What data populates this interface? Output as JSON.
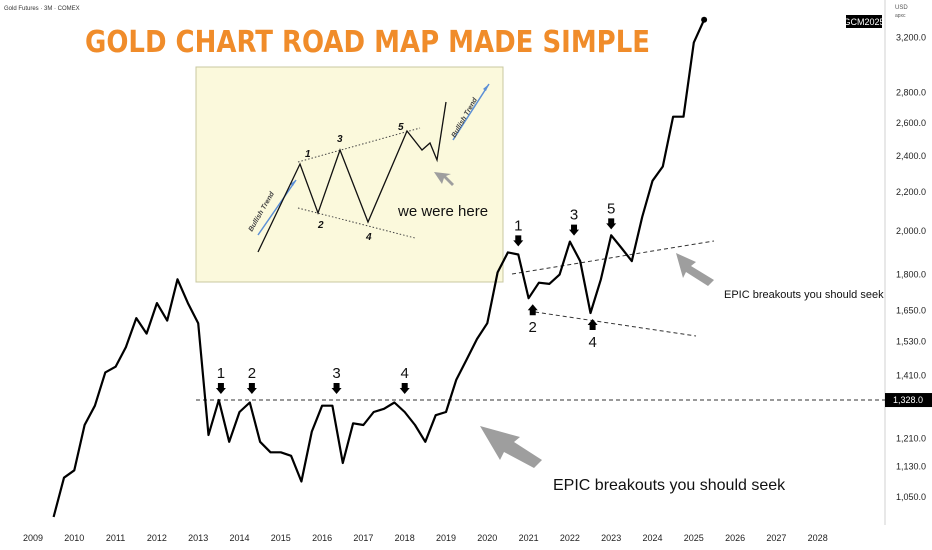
{
  "header": {
    "instrument": "Gold Futures · 3M · COMEX",
    "headline": "GOLD CHART ROAD MAP MADE SIMPLE",
    "ticker": "GCM2025",
    "currency": "USD",
    "scale_mode": "apxc"
  },
  "colors": {
    "headline": "#f08c2a",
    "line": "#000000",
    "inset_bg": "#fbf9dc",
    "inset_border": "#c8c8a0",
    "price_tag_bg": "#000000",
    "ticker_bg": "#000000",
    "arrow_fill": "#9e9e9e",
    "trend_arrow": "#5b8fd6"
  },
  "annotations": {
    "breakout_bottom": "EPIC breakouts you should seek",
    "breakout_top": "EPIC breakouts you should seek",
    "we_were_here": "we were here",
    "bullish_trend_left": "Bullish Trend",
    "bullish_trend_right": "Bullish Trend"
  },
  "chart_data": {
    "type": "line",
    "title": "GOLD CHART ROAD MAP MADE SIMPLE",
    "scale": "log",
    "ylim": [
      1000,
      3420
    ],
    "xlim": [
      2009.0,
      2028.7
    ],
    "x_ticks": [
      "2009",
      "2010",
      "2011",
      "2012",
      "2013",
      "2014",
      "2015",
      "2016",
      "2017",
      "2018",
      "2019",
      "2020",
      "2021",
      "2022",
      "2023",
      "2024",
      "2025",
      "2026",
      "2027",
      "2028"
    ],
    "y_ticks": [
      "3,200.0",
      "2,800.0",
      "2,600.0",
      "2,400.0",
      "2,200.0",
      "2,000.0",
      "1,800.0",
      "1,650.0",
      "1,530.0",
      "1,410.0",
      "1,210.0",
      "1,130.0",
      "1,050.0"
    ],
    "last_price": "3,340.0",
    "series": [
      {
        "name": "",
        "x": [
          2009.5,
          2009.75,
          2010.0,
          2010.25,
          2010.5,
          2010.75,
          2011.0,
          2011.25,
          2011.5,
          2011.75,
          2012.0,
          2012.25,
          2012.5,
          2012.75,
          2013.0,
          2013.25,
          2013.5,
          2013.75,
          2014.0,
          2014.25,
          2014.5,
          2014.75,
          2015.0,
          2015.25,
          2015.5,
          2015.75,
          2016.0,
          2016.25,
          2016.5,
          2016.75,
          2017.0,
          2017.25,
          2017.5,
          2017.75,
          2018.0,
          2018.25,
          2018.5,
          2018.75,
          2019.0,
          2019.25,
          2019.5,
          2019.75,
          2020.0,
          2020.25,
          2020.5,
          2020.75,
          2021.0,
          2021.25,
          2021.5,
          2021.75,
          2022.0,
          2022.25,
          2022.5,
          2022.75,
          2023.0,
          2023.25,
          2023.5,
          2023.75,
          2024.0,
          2024.25,
          2024.5,
          2024.75,
          2025.0,
          2025.25
        ],
        "values": [
          1000,
          1100,
          1120,
          1250,
          1310,
          1420,
          1440,
          1510,
          1620,
          1560,
          1680,
          1610,
          1780,
          1680,
          1600,
          1220,
          1328,
          1200,
          1290,
          1320,
          1200,
          1170,
          1170,
          1160,
          1090,
          1230,
          1310,
          1310,
          1140,
          1255,
          1250,
          1290,
          1300,
          1320,
          1290,
          1250,
          1200,
          1280,
          1290,
          1395,
          1465,
          1540,
          1600,
          1810,
          1900,
          1890,
          1700,
          1765,
          1760,
          1800,
          1950,
          1860,
          1640,
          1780,
          1980,
          1920,
          1860,
          2070,
          2260,
          2340,
          2640,
          2640,
          3160,
          3340
        ]
      }
    ],
    "levels": [
      {
        "value": 1328.0,
        "label": "1,328.0",
        "style": "dashed"
      }
    ],
    "pattern_labels": [
      {
        "text": "1",
        "x": 2013.55,
        "y": 1328
      },
      {
        "text": "2",
        "x": 2014.3,
        "y": 1328
      },
      {
        "text": "3",
        "x": 2016.35,
        "y": 1328
      },
      {
        "text": "4",
        "x": 2018.0,
        "y": 1328
      },
      {
        "text": "1",
        "x": 2020.75,
        "y": 1900
      },
      {
        "text": "3",
        "x": 2022.1,
        "y": 1950
      },
      {
        "text": "5",
        "x": 2023.0,
        "y": 1980
      },
      {
        "text": "2",
        "x": 2021.1,
        "y": 1700
      },
      {
        "text": "4",
        "x": 2022.55,
        "y": 1640
      }
    ]
  }
}
